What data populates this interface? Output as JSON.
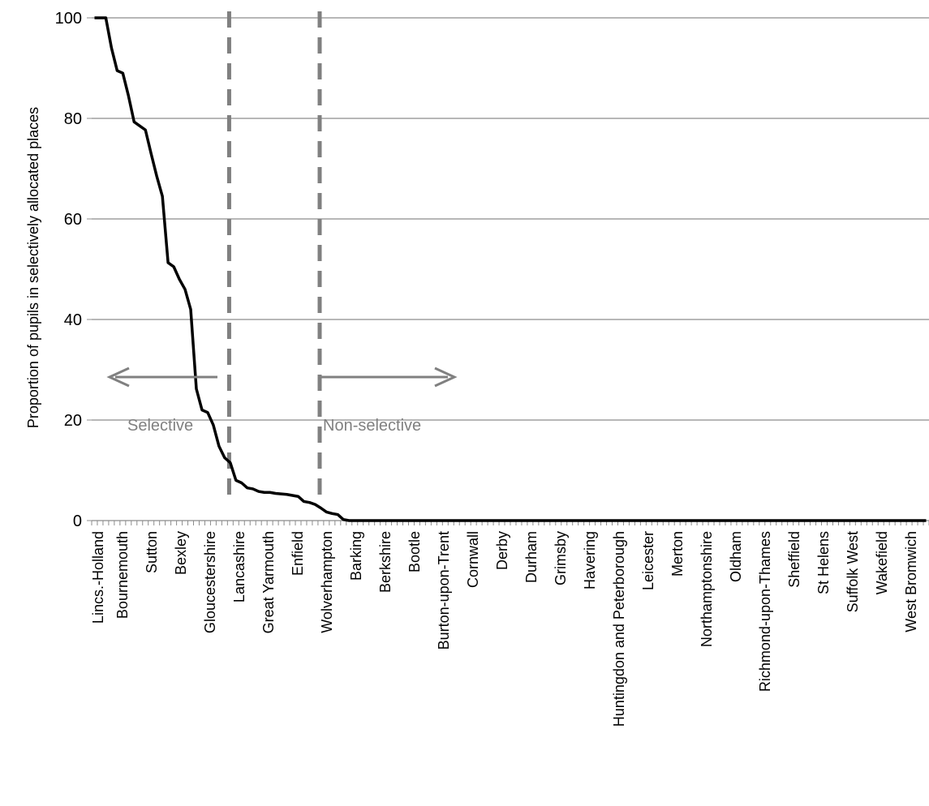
{
  "chart_data": {
    "type": "line",
    "title": "",
    "xlabel": "",
    "ylabel": "Proportion of pupils in selectively allocated places",
    "ylim": [
      0,
      100
    ],
    "yticks": [
      0,
      20,
      40,
      60,
      80,
      100
    ],
    "grid": true,
    "n_categories": 148,
    "tick_labels": [
      {
        "index": 1,
        "label": "Lincs.-Holland"
      },
      {
        "index": 6,
        "label": "Bournemouth"
      },
      {
        "index": 12,
        "label": "Sutton"
      },
      {
        "index": 18,
        "label": "Bexley"
      },
      {
        "index": 24,
        "label": "Gloucestershire"
      },
      {
        "index": 30,
        "label": "Lancashire"
      },
      {
        "index": 36,
        "label": "Great Yarmouth"
      },
      {
        "index": 42,
        "label": "Enfield"
      },
      {
        "index": 48,
        "label": "Wolverhampton"
      },
      {
        "index": 54,
        "label": "Barking"
      },
      {
        "index": 60,
        "label": "Berkshire"
      },
      {
        "index": 66,
        "label": "Bootle"
      },
      {
        "index": 72,
        "label": "Burton-upon-Trent"
      },
      {
        "index": 78,
        "label": "Cornwall"
      },
      {
        "index": 84,
        "label": "Derby"
      },
      {
        "index": 90,
        "label": "Durham"
      },
      {
        "index": 96,
        "label": "Grimsby"
      },
      {
        "index": 102,
        "label": "Havering"
      },
      {
        "index": 108,
        "label": "Huntingdon and Peterborough"
      },
      {
        "index": 114,
        "label": "Leicester"
      },
      {
        "index": 120,
        "label": "Merton"
      },
      {
        "index": 126,
        "label": "Northamptonshire"
      },
      {
        "index": 132,
        "label": "Oldham"
      },
      {
        "index": 138,
        "label": "Richmond-upon-Thames"
      },
      {
        "index": 144,
        "label": "Sheffield"
      },
      {
        "index": 150,
        "label": "St Helens"
      },
      {
        "index": 156,
        "label": "Suffolk West"
      },
      {
        "index": 162,
        "label": "Wakefield"
      },
      {
        "index": 168,
        "label": "West Bromwich"
      }
    ],
    "series": [
      {
        "values": [
          100,
          100,
          100,
          94,
          89.5,
          89,
          84.5,
          79.3,
          78.5,
          77.7,
          73,
          68.5,
          64.5,
          51.3,
          50.5,
          48,
          46,
          42,
          26.2,
          22,
          21.5,
          19,
          14.8,
          12.5,
          11.5,
          8,
          7.5,
          6.5,
          6.3,
          5.8,
          5.6,
          5.6,
          5.4,
          5.3,
          5.2,
          5,
          4.8,
          3.8,
          3.6,
          3.2,
          2.5,
          1.7,
          1.4,
          1.2,
          0.2,
          0,
          0,
          0,
          0,
          0,
          0,
          0,
          0,
          0,
          0,
          0,
          0,
          0,
          0,
          0,
          0,
          0,
          0,
          0,
          0,
          0,
          0,
          0,
          0,
          0,
          0,
          0,
          0,
          0,
          0,
          0,
          0,
          0,
          0,
          0,
          0,
          0,
          0,
          0,
          0,
          0,
          0,
          0,
          0,
          0,
          0,
          0,
          0,
          0,
          0,
          0,
          0,
          0,
          0,
          0,
          0,
          0,
          0,
          0,
          0,
          0,
          0,
          0,
          0,
          0,
          0,
          0,
          0,
          0,
          0,
          0,
          0,
          0,
          0,
          0,
          0,
          0,
          0,
          0,
          0,
          0,
          0,
          0,
          0,
          0,
          0,
          0,
          0,
          0,
          0,
          0,
          0,
          0,
          0,
          0,
          0,
          0,
          0,
          0,
          0,
          0,
          0,
          0
        ]
      }
    ],
    "dividers": [
      24.3,
      40.3
    ],
    "annotations": {
      "selective": "Selective",
      "non_selective": "Non-selective"
    },
    "colors": {
      "line": "#000000",
      "grid": "#8c8c8c",
      "divider": "#808080",
      "annotation": "#808080",
      "text": "#000000"
    }
  }
}
